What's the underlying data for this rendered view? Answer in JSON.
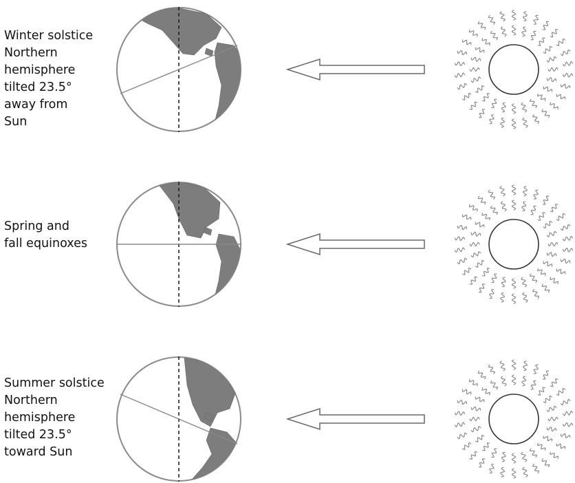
{
  "rows": [
    {
      "id": "winter",
      "caption": "Winter solstice\nNorthern\nhemisphere\ntilted 23.5°\naway from\nSun"
    },
    {
      "id": "equinox",
      "caption": "Spring and\nfall equinoxes"
    },
    {
      "id": "summer",
      "caption": "Summer solstice\nNorthern\nhemisphere\ntilted 23.5°\ntoward Sun"
    }
  ],
  "tilt_degrees": 23.5,
  "colors": {
    "land": "#7d7d7d",
    "globe_outline": "#8a8a8a",
    "rays": "#8a8a8a",
    "arrow_outline": "#666666"
  }
}
